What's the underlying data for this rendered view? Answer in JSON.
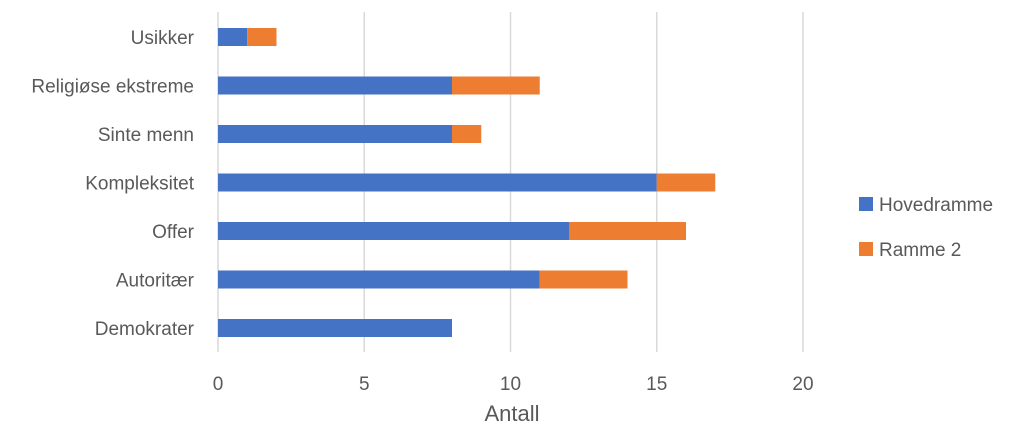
{
  "chart_data": {
    "type": "bar",
    "orientation": "horizontal",
    "stacked": true,
    "categories": [
      "Usikker",
      "Religiøse ekstreme",
      "Sinte menn",
      "Kompleksitet",
      "Offer",
      "Autoritær",
      "Demokrater"
    ],
    "series": [
      {
        "name": "Hovedramme",
        "color": "#4472C4",
        "values": [
          1,
          8,
          8,
          15,
          12,
          11,
          8
        ]
      },
      {
        "name": "Ramme 2",
        "color": "#ED7D31",
        "values": [
          1,
          3,
          1,
          2,
          4,
          3,
          0
        ]
      }
    ],
    "xlabel": "Antall",
    "ylabel": "",
    "xlim": [
      0,
      20
    ],
    "xticks": [
      "0",
      "5",
      "10",
      "15",
      "20"
    ],
    "grid": "vertical",
    "legend": "right"
  }
}
